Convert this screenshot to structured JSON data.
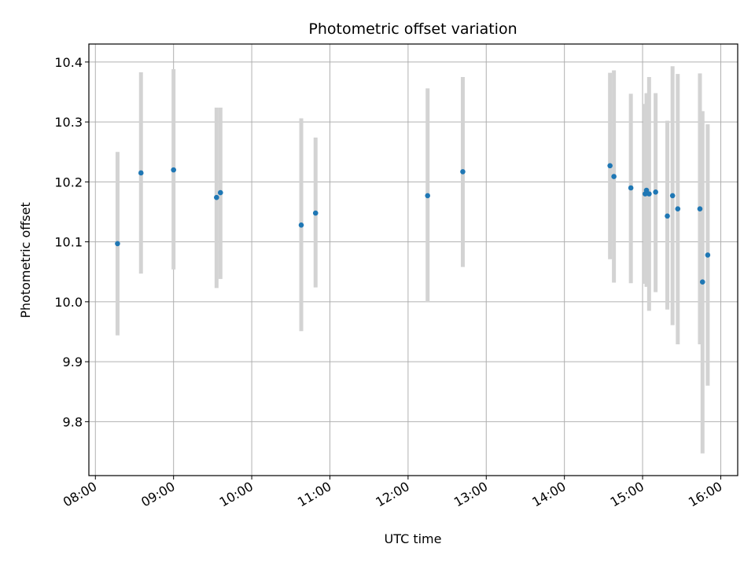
{
  "chart_data": {
    "type": "scatter",
    "title": "Photometric offset variation",
    "xlabel": "UTC time",
    "ylabel": "Photometric offset",
    "grid": true,
    "x_unit": "hours",
    "xlim": [
      "07:55",
      "16:13"
    ],
    "ylim": [
      9.71,
      10.43
    ],
    "x_ticks": [
      {
        "label": "08:00",
        "value": "08:00"
      },
      {
        "label": "09:00",
        "value": "09:00"
      },
      {
        "label": "10:00",
        "value": "10:00"
      },
      {
        "label": "11:00",
        "value": "11:00"
      },
      {
        "label": "12:00",
        "value": "12:00"
      },
      {
        "label": "13:00",
        "value": "13:00"
      },
      {
        "label": "14:00",
        "value": "14:00"
      },
      {
        "label": "15:00",
        "value": "15:00"
      },
      {
        "label": "16:00",
        "value": "16:00"
      }
    ],
    "y_ticks": [
      {
        "label": "9.8",
        "value": 9.8
      },
      {
        "label": "9.9",
        "value": 9.9
      },
      {
        "label": "10.0",
        "value": 10.0
      },
      {
        "label": "10.1",
        "value": 10.1
      },
      {
        "label": "10.2",
        "value": 10.2
      },
      {
        "label": "10.3",
        "value": 10.3
      },
      {
        "label": "10.4",
        "value": 10.4
      }
    ],
    "point_color": "#1f77b4",
    "errorbar_color": "#d3d3d3",
    "series": [
      {
        "points": [
          {
            "x": "08:17",
            "y": 10.097,
            "yerr_low": 9.944,
            "yerr_high": 10.25
          },
          {
            "x": "08:35",
            "y": 10.215,
            "yerr_low": 10.047,
            "yerr_high": 10.383
          },
          {
            "x": "09:00",
            "y": 10.22,
            "yerr_low": 10.054,
            "yerr_high": 10.388
          },
          {
            "x": "09:33",
            "y": 10.174,
            "yerr_low": 10.023,
            "yerr_high": 10.324
          },
          {
            "x": "09:36",
            "y": 10.182,
            "yerr_low": 10.038,
            "yerr_high": 10.324
          },
          {
            "x": "10:38",
            "y": 10.128,
            "yerr_low": 9.951,
            "yerr_high": 10.306
          },
          {
            "x": "10:49",
            "y": 10.148,
            "yerr_low": 10.024,
            "yerr_high": 10.274
          },
          {
            "x": "12:15",
            "y": 10.177,
            "yerr_low": 9.999,
            "yerr_high": 10.356
          },
          {
            "x": "12:42",
            "y": 10.217,
            "yerr_low": 10.058,
            "yerr_high": 10.375
          },
          {
            "x": "14:35",
            "y": 10.227,
            "yerr_low": 10.071,
            "yerr_high": 10.382
          },
          {
            "x": "14:38",
            "y": 10.209,
            "yerr_low": 10.032,
            "yerr_high": 10.386
          },
          {
            "x": "14:51",
            "y": 10.19,
            "yerr_low": 10.031,
            "yerr_high": 10.347
          },
          {
            "x": "15:02",
            "y": 10.18,
            "yerr_low": 10.03,
            "yerr_high": 10.33
          },
          {
            "x": "15:03",
            "y": 10.186,
            "yerr_low": 10.025,
            "yerr_high": 10.348
          },
          {
            "x": "15:05",
            "y": 10.18,
            "yerr_low": 9.985,
            "yerr_high": 10.375
          },
          {
            "x": "15:10",
            "y": 10.183,
            "yerr_low": 10.016,
            "yerr_high": 10.348
          },
          {
            "x": "15:19",
            "y": 10.143,
            "yerr_low": 9.987,
            "yerr_high": 10.302
          },
          {
            "x": "15:23",
            "y": 10.177,
            "yerr_low": 9.961,
            "yerr_high": 10.393
          },
          {
            "x": "15:27",
            "y": 10.155,
            "yerr_low": 9.929,
            "yerr_high": 10.38
          },
          {
            "x": "15:44",
            "y": 10.155,
            "yerr_low": 9.929,
            "yerr_high": 10.381
          },
          {
            "x": "15:46",
            "y": 10.033,
            "yerr_low": 9.747,
            "yerr_high": 10.318
          },
          {
            "x": "15:50",
            "y": 10.078,
            "yerr_low": 9.86,
            "yerr_high": 10.296
          }
        ]
      }
    ]
  }
}
